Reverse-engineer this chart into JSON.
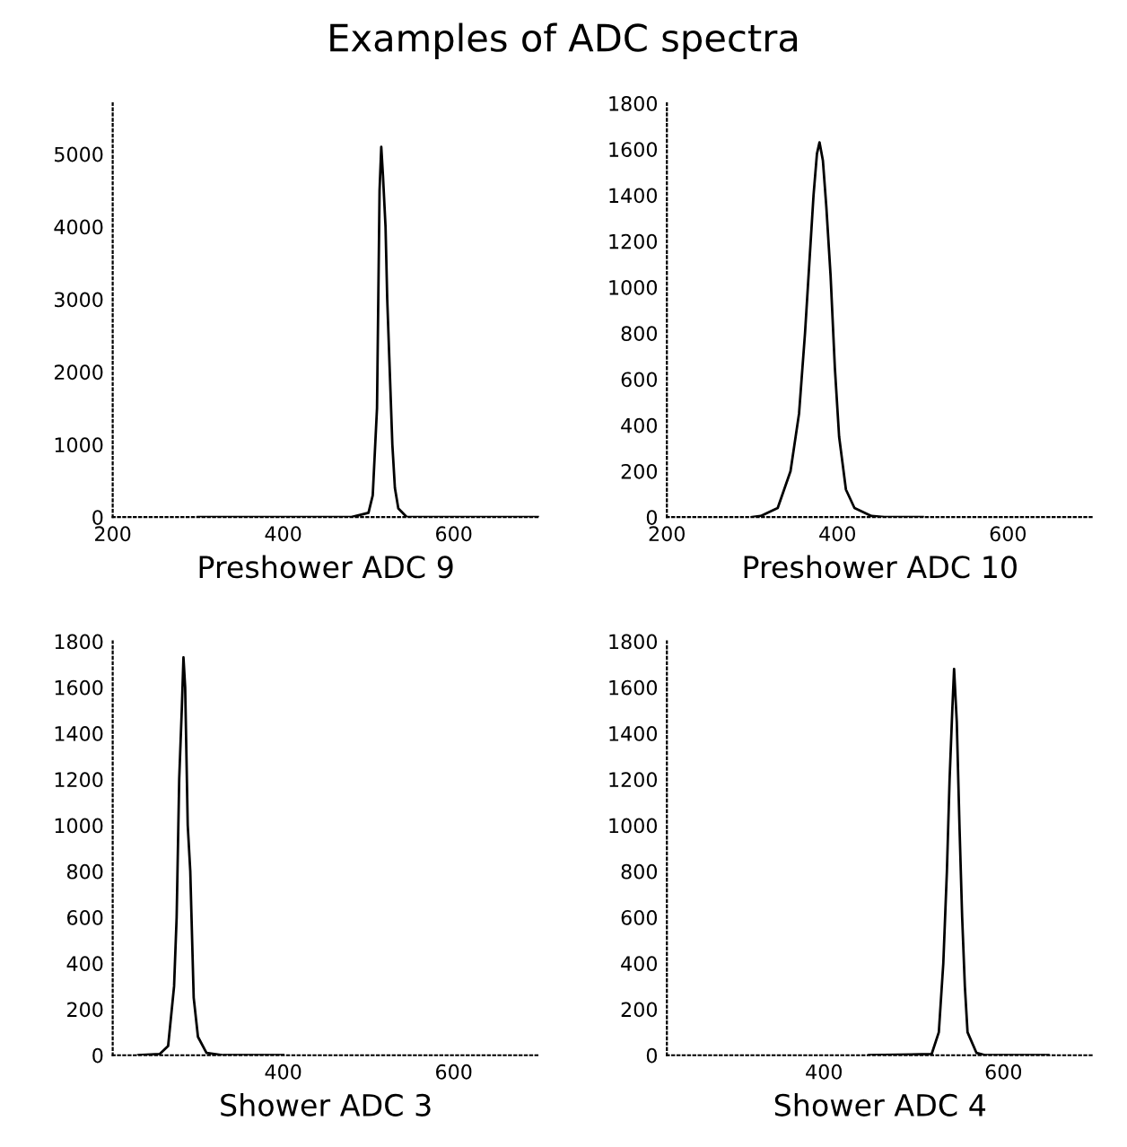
{
  "chart_data": [
    {
      "type": "line",
      "title": "Examples of ADC spectra",
      "xlabel": "Preshower ADC 9",
      "xlim": [
        200,
        700
      ],
      "ylim": [
        0,
        5700
      ],
      "xticks": [
        200,
        400,
        600
      ],
      "yticks": [
        0,
        1000,
        2000,
        3000,
        4000,
        5000
      ],
      "grid": false,
      "legend": false,
      "marker": "none",
      "line_style": "solid",
      "series": [
        {
          "color": "#000000",
          "x": [
            300,
            400,
            480,
            500,
            505,
            510,
            513,
            515,
            517,
            520,
            522,
            525,
            528,
            531,
            535,
            545,
            600,
            700
          ],
          "values": [
            0,
            0,
            0,
            60,
            300,
            1500,
            4500,
            5100,
            4700,
            4000,
            3000,
            2000,
            1000,
            400,
            120,
            0,
            0,
            0
          ]
        }
      ]
    },
    {
      "type": "line",
      "xlabel": "Preshower ADC 10",
      "xlim": [
        200,
        700
      ],
      "ylim": [
        0,
        1800
      ],
      "xticks": [
        200,
        400,
        600
      ],
      "yticks": [
        0,
        200,
        400,
        600,
        800,
        1000,
        1200,
        1400,
        1600,
        1800
      ],
      "grid": false,
      "legend": false,
      "marker": "none",
      "line_style": "solid",
      "series": [
        {
          "color": "#000000",
          "x": [
            300,
            310,
            330,
            345,
            355,
            362,
            367,
            372,
            376,
            379,
            383,
            387,
            392,
            397,
            402,
            410,
            420,
            440,
            455,
            500
          ],
          "values": [
            0,
            5,
            40,
            200,
            450,
            800,
            1100,
            1400,
            1580,
            1630,
            1550,
            1350,
            1050,
            650,
            350,
            120,
            40,
            5,
            0,
            0
          ]
        }
      ]
    },
    {
      "type": "line",
      "xlabel": "Shower ADC 3",
      "xlim": [
        200,
        700
      ],
      "ylim": [
        0,
        1800
      ],
      "xticks": [
        400,
        600
      ],
      "yticks": [
        0,
        200,
        400,
        600,
        800,
        1000,
        1200,
        1400,
        1600,
        1800
      ],
      "grid": false,
      "legend": false,
      "marker": "none",
      "line_style": "solid",
      "series": [
        {
          "color": "#000000",
          "x": [
            230,
            255,
            265,
            272,
            275,
            278,
            281,
            283,
            285,
            288,
            291,
            295,
            300,
            310,
            330,
            400
          ],
          "values": [
            0,
            5,
            40,
            300,
            600,
            1200,
            1500,
            1730,
            1600,
            1000,
            800,
            250,
            80,
            10,
            0,
            0
          ]
        }
      ]
    },
    {
      "type": "line",
      "xlabel": "Shower ADC 4",
      "xlim": [
        225,
        700
      ],
      "ylim": [
        0,
        1800
      ],
      "xticks": [
        400,
        600
      ],
      "yticks": [
        0,
        200,
        400,
        600,
        800,
        1000,
        1200,
        1400,
        1600,
        1800
      ],
      "grid": false,
      "legend": false,
      "marker": "none",
      "line_style": "solid",
      "series": [
        {
          "color": "#000000",
          "x": [
            450,
            520,
            528,
            533,
            537,
            540,
            543,
            545,
            548,
            551,
            554,
            557,
            560,
            570,
            580,
            650
          ],
          "values": [
            0,
            5,
            100,
            400,
            800,
            1200,
            1500,
            1680,
            1450,
            1000,
            600,
            300,
            100,
            10,
            0,
            0
          ]
        }
      ]
    }
  ]
}
